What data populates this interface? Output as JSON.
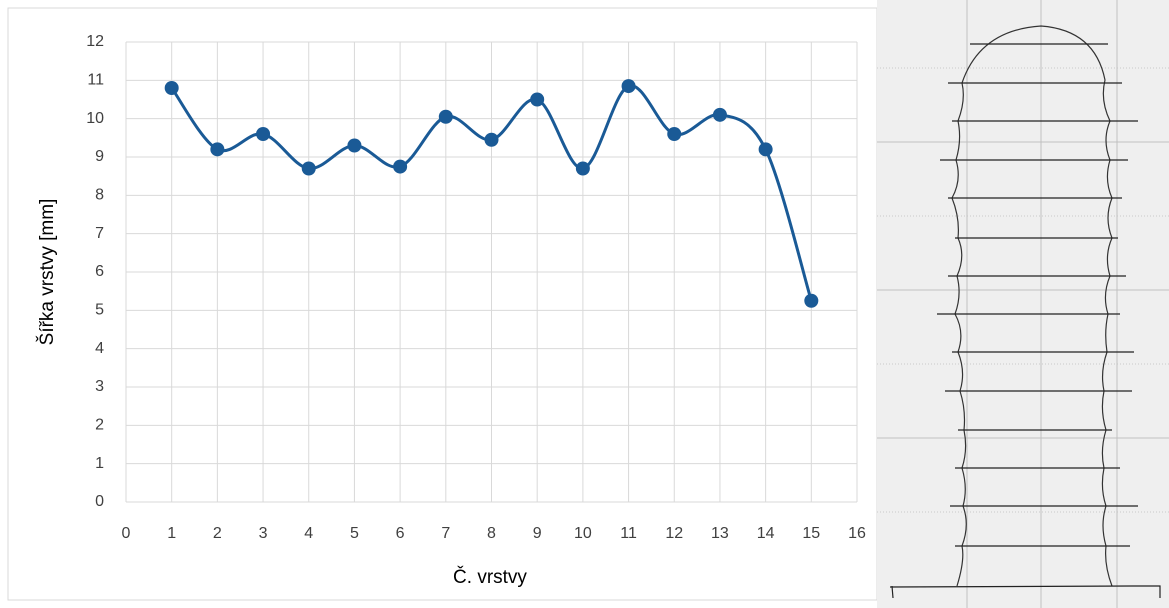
{
  "chart_data": {
    "type": "line",
    "smooth": true,
    "x_label": "Č. vrstvy",
    "y_label": "Šířka vrstvy [mm]",
    "x": [
      1,
      2,
      3,
      4,
      5,
      6,
      7,
      8,
      9,
      10,
      11,
      12,
      13,
      14,
      15
    ],
    "series": [
      {
        "color": "#1a5a96",
        "values": [
          10.8,
          9.2,
          9.6,
          8.7,
          9.3,
          8.75,
          10.05,
          9.45,
          10.5,
          8.7,
          10.85,
          9.6,
          10.1,
          9.2,
          5.25
        ]
      }
    ],
    "xlim": [
      0,
      16
    ],
    "xticks": [
      0,
      1,
      2,
      3,
      4,
      5,
      6,
      7,
      8,
      9,
      10,
      11,
      12,
      13,
      14,
      15,
      16
    ],
    "ylim": [
      0,
      12
    ],
    "yticks": [
      0,
      1,
      2,
      3,
      4,
      5,
      6,
      7,
      8,
      9,
      10,
      11,
      12
    ],
    "grid": true
  }
}
